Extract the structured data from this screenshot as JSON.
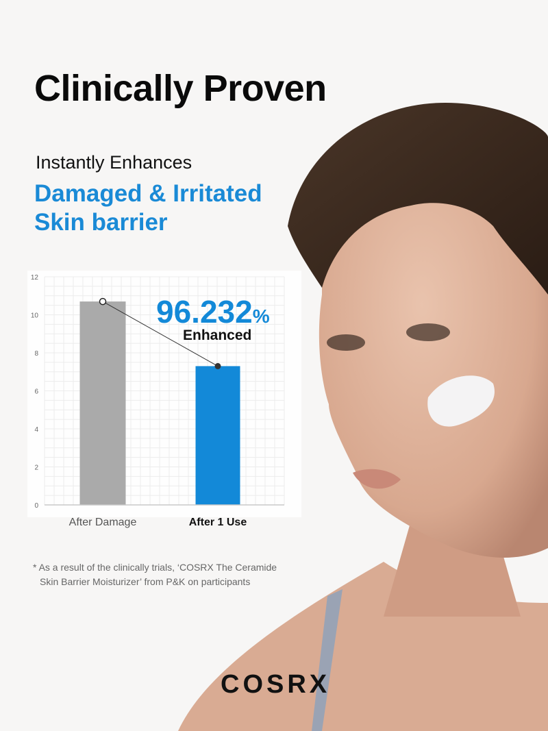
{
  "title": "Clinically Proven",
  "subtitle_line1": "Instantly Enhances",
  "subtitle_line2": "Damaged & Irritated",
  "subtitle_line3": "Skin barrier",
  "chart_data": {
    "type": "bar",
    "categories": [
      "After Damage",
      "After 1 Use"
    ],
    "values": [
      10.7,
      7.3
    ],
    "colors": [
      "#aaaaaa",
      "#1389d8"
    ],
    "ylim": [
      0,
      12
    ],
    "yticks": [
      "0",
      "2",
      "4",
      "6",
      "8",
      "10",
      "12"
    ],
    "grid": true,
    "connector_line": true,
    "annotation_value": "96.232",
    "annotation_unit": "%",
    "annotation_label": "Enhanced"
  },
  "footnote_line1": "* As a result of the clinically trials,  ‘COSRX The Ceramide",
  "footnote_line2": "Skin Barrier Moisturizer’ from P&K on participants",
  "brand": "COSRX"
}
